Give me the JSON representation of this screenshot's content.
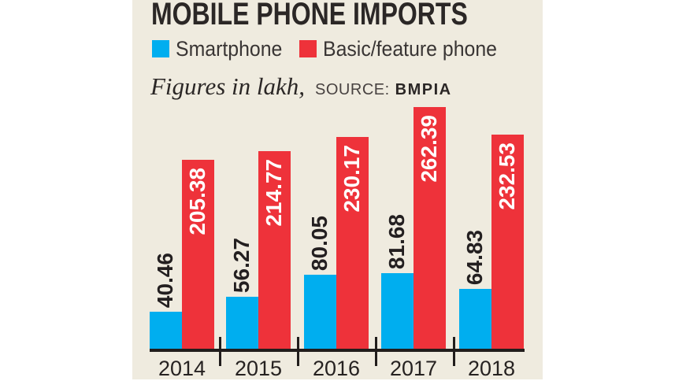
{
  "header": {
    "title": "MOBILE PHONE IMPORTS",
    "note_italic": "Figures in lakh,",
    "source_label": "SOURCE:",
    "source_value": "BMPIA"
  },
  "legend": [
    {
      "label": "Smartphone",
      "color": "#00aeef"
    },
    {
      "label": "Basic/feature phone",
      "color": "#ee323a"
    }
  ],
  "chart_data": {
    "type": "bar",
    "title": "MOBILE PHONE IMPORTS",
    "unit": "lakh",
    "source": "BMPIA",
    "categories": [
      "2014",
      "2015",
      "2016",
      "2017",
      "2018"
    ],
    "series": [
      {
        "name": "Smartphone",
        "color": "#00aeef",
        "values": [
          40.46,
          56.27,
          80.05,
          81.68,
          64.83
        ]
      },
      {
        "name": "Basic/feature phone",
        "color": "#ee323a",
        "values": [
          205.38,
          214.77,
          230.17,
          262.39,
          232.53
        ]
      }
    ],
    "ylim": [
      0,
      266
    ],
    "grid": false,
    "legend_position": "top",
    "value_labels": "rotated-90"
  },
  "colors": {
    "panel_background": "#efebdf",
    "page_background": "#ffffff",
    "axis": "#211d1c",
    "text_dark": "#2b2726",
    "value_label_dark": "#231f20",
    "value_label_light": "#ffffff"
  }
}
